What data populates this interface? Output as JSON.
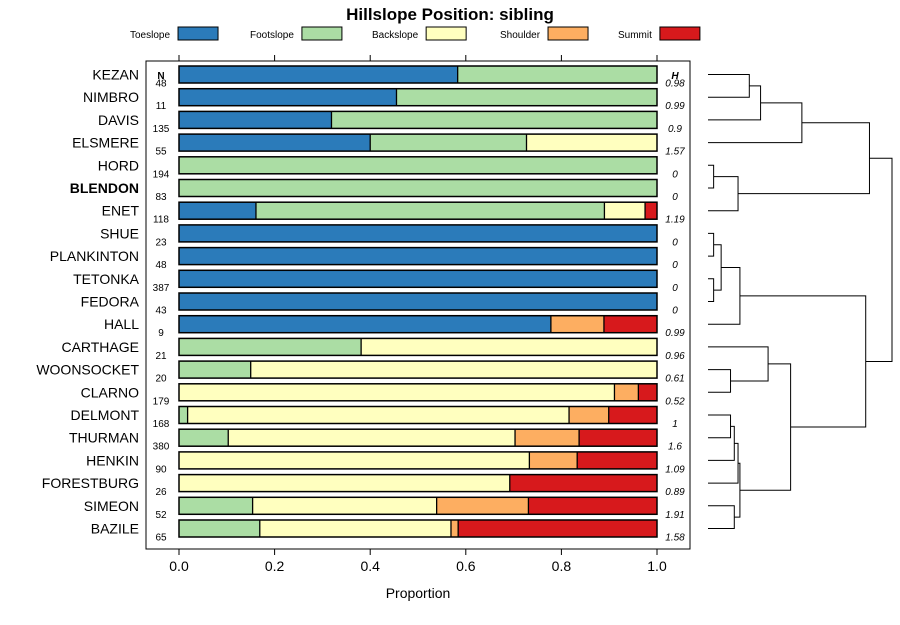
{
  "chart_data": {
    "type": "bar",
    "stacked": true,
    "orientation": "horizontal",
    "title": "Hillslope Position: sibling",
    "xlabel": "Proportion",
    "xlim": [
      0,
      1
    ],
    "x_ticks": [
      "0.0",
      "0.2",
      "0.4",
      "0.6",
      "0.8",
      "1.0"
    ],
    "n_header": "N",
    "h_header": "H",
    "series": [
      {
        "name": "Toeslope",
        "color": "#2b7bba"
      },
      {
        "name": "Footslope",
        "color": "#abdda4"
      },
      {
        "name": "Backslope",
        "color": "#ffffbf"
      },
      {
        "name": "Shoulder",
        "color": "#fdae61"
      },
      {
        "name": "Summit",
        "color": "#d7191c"
      }
    ],
    "categories": [
      {
        "name": "KEZAN",
        "n": "48",
        "h": "0.98",
        "values": [
          0.583,
          0.417,
          0,
          0,
          0
        ]
      },
      {
        "name": "NIMBRO",
        "n": "11",
        "h": "0.99",
        "values": [
          0.455,
          0.545,
          0,
          0,
          0
        ]
      },
      {
        "name": "DAVIS",
        "n": "135",
        "h": "0.9",
        "values": [
          0.319,
          0.681,
          0,
          0,
          0
        ]
      },
      {
        "name": "ELSMERE",
        "n": "55",
        "h": "1.57",
        "values": [
          0.4,
          0.327,
          0.273,
          0,
          0
        ]
      },
      {
        "name": "HORD",
        "n": "194",
        "h": "0",
        "values": [
          0,
          1,
          0,
          0,
          0
        ]
      },
      {
        "name": "BLENDON",
        "n": "83",
        "h": "0",
        "bold": true,
        "values": [
          0,
          1,
          0,
          0,
          0
        ]
      },
      {
        "name": "ENET",
        "n": "118",
        "h": "1.19",
        "values": [
          0.161,
          0.729,
          0.085,
          0,
          0.025
        ]
      },
      {
        "name": "SHUE",
        "n": "23",
        "h": "0",
        "values": [
          1,
          0,
          0,
          0,
          0
        ]
      },
      {
        "name": "PLANKINTON",
        "n": "48",
        "h": "0",
        "values": [
          1,
          0,
          0,
          0,
          0
        ]
      },
      {
        "name": "TETONKA",
        "n": "387",
        "h": "0",
        "values": [
          1,
          0,
          0,
          0,
          0
        ]
      },
      {
        "name": "FEDORA",
        "n": "43",
        "h": "0",
        "values": [
          1,
          0,
          0,
          0,
          0
        ]
      },
      {
        "name": "HALL",
        "n": "9",
        "h": "0.99",
        "values": [
          0.778,
          0,
          0,
          0.111,
          0.111
        ]
      },
      {
        "name": "CARTHAGE",
        "n": "21",
        "h": "0.96",
        "values": [
          0,
          0.381,
          0.619,
          0,
          0
        ]
      },
      {
        "name": "WOONSOCKET",
        "n": "20",
        "h": "0.61",
        "values": [
          0,
          0.15,
          0.85,
          0,
          0
        ]
      },
      {
        "name": "CLARNO",
        "n": "179",
        "h": "0.52",
        "values": [
          0,
          0,
          0.911,
          0.05,
          0.039
        ]
      },
      {
        "name": "DELMONT",
        "n": "168",
        "h": "1",
        "values": [
          0,
          0.018,
          0.798,
          0.083,
          0.101
        ]
      },
      {
        "name": "THURMAN",
        "n": "380",
        "h": "1.6",
        "values": [
          0,
          0.103,
          0.6,
          0.134,
          0.163
        ]
      },
      {
        "name": "HENKIN",
        "n": "90",
        "h": "1.09",
        "values": [
          0,
          0,
          0.733,
          0.1,
          0.167
        ]
      },
      {
        "name": "FORESTBURG",
        "n": "26",
        "h": "0.89",
        "values": [
          0,
          0,
          0.692,
          0,
          0.308
        ]
      },
      {
        "name": "SIMEON",
        "n": "52",
        "h": "1.91",
        "values": [
          0,
          0.154,
          0.385,
          0.192,
          0.269
        ]
      },
      {
        "name": "BAZILE",
        "n": "65",
        "h": "1.58",
        "values": [
          0,
          0.169,
          0.4,
          0.015,
          0.416
        ]
      }
    ],
    "dendrogram": {
      "leaf_order": [
        "KEZAN",
        "NIMBRO",
        "DAVIS",
        "ELSMERE",
        "HORD",
        "BLENDON",
        "ENET",
        "SHUE",
        "PLANKINTON",
        "TETONKA",
        "FEDORA",
        "HALL",
        "CARTHAGE",
        "WOONSOCKET",
        "CLARNO",
        "DELMONT",
        "THURMAN",
        "HENKIN",
        "FORESTBURG",
        "SIMEON",
        "BAZILE"
      ],
      "heights": [
        0,
        0.36
      ],
      "merges": [
        {
          "id": "m1",
          "a": 0,
          "b": 1,
          "h": 0.11
        },
        {
          "id": "m2",
          "a": "m1",
          "b": 2,
          "h": 0.14
        },
        {
          "id": "m3",
          "a": "m2",
          "b": 3,
          "h": 0.25
        },
        {
          "id": "m4",
          "a": 4,
          "b": 5,
          "h": 0.015
        },
        {
          "id": "m5",
          "a": "m4",
          "b": 6,
          "h": 0.08
        },
        {
          "id": "m6",
          "a": "m3",
          "b": "m5",
          "h": 0.43
        },
        {
          "id": "m7",
          "a": 7,
          "b": 8,
          "h": 0.015
        },
        {
          "id": "m8",
          "a": 9,
          "b": 10,
          "h": 0.015
        },
        {
          "id": "m9",
          "a": "m7",
          "b": "m8",
          "h": 0.035
        },
        {
          "id": "m10",
          "a": "m9",
          "b": 11,
          "h": 0.085
        },
        {
          "id": "m11",
          "a": 13,
          "b": 14,
          "h": 0.06
        },
        {
          "id": "m12",
          "a": 12,
          "b": "m11",
          "h": 0.16
        },
        {
          "id": "m13",
          "a": 15,
          "b": 16,
          "h": 0.06
        },
        {
          "id": "m14",
          "a": "m13",
          "b": 17,
          "h": 0.07
        },
        {
          "id": "m15",
          "a": "m14",
          "b": 18,
          "h": 0.08
        },
        {
          "id": "m16",
          "a": 19,
          "b": 20,
          "h": 0.07
        },
        {
          "id": "m17",
          "a": "m15",
          "b": "m16",
          "h": 0.085
        },
        {
          "id": "m18",
          "a": "m12",
          "b": "m17",
          "h": 0.22
        },
        {
          "id": "m19",
          "a": "m10",
          "b": "m18",
          "h": 0.42
        },
        {
          "id": "m20",
          "a": "m6",
          "b": "m19",
          "h": 0.49
        }
      ]
    }
  }
}
